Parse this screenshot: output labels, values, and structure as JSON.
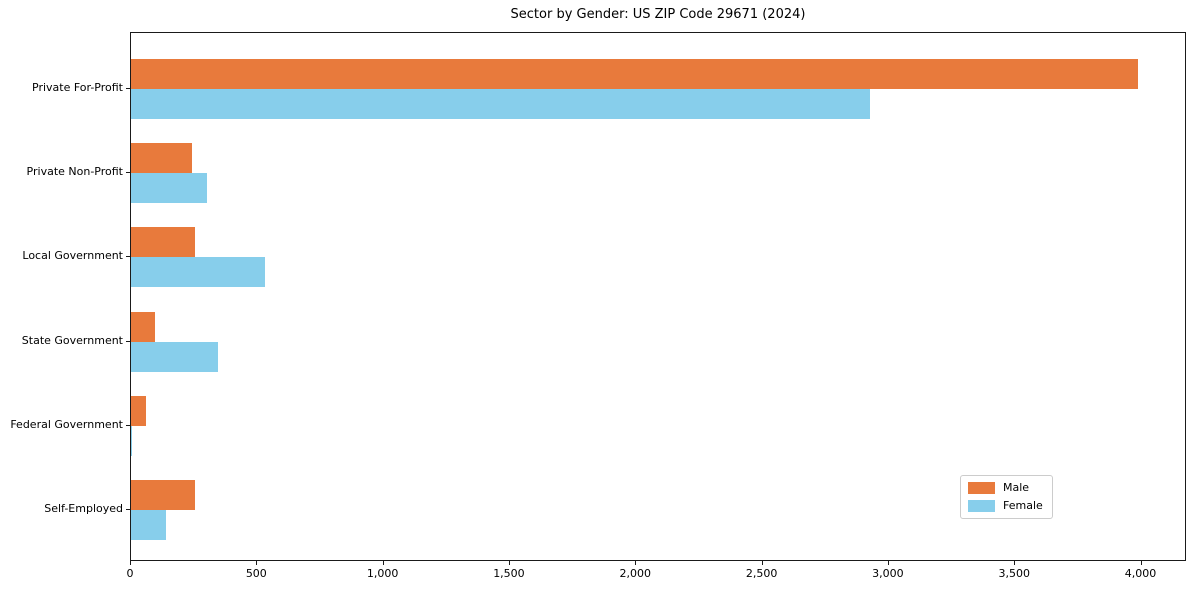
{
  "chart_data": {
    "type": "bar",
    "orientation": "horizontal",
    "title": "Sector by Gender: US ZIP Code 29671 (2024)",
    "categories": [
      "Private For-Profit",
      "Private Non-Profit",
      "Local Government",
      "State Government",
      "Federal Government",
      "Self-Employed"
    ],
    "series": [
      {
        "name": "Male",
        "color": "#e87a3c",
        "values": [
          3985,
          240,
          255,
          95,
          60,
          255
        ]
      },
      {
        "name": "Female",
        "color": "#87ceeb",
        "values": [
          2925,
          300,
          530,
          345,
          5,
          140
        ]
      }
    ],
    "xlabel": "",
    "ylabel": "",
    "xlim": [
      0,
      4180
    ],
    "x_ticks": [
      0,
      500,
      1000,
      1500,
      2000,
      2500,
      3000,
      3500,
      4000
    ],
    "x_tick_labels": [
      "0",
      "500",
      "1,000",
      "1,500",
      "2,000",
      "2,500",
      "3,000",
      "3,500",
      "4,000"
    ],
    "grid": false,
    "legend_position": "lower-right",
    "axis_color": "#1a1a1a",
    "background_color": "#ffffff"
  }
}
